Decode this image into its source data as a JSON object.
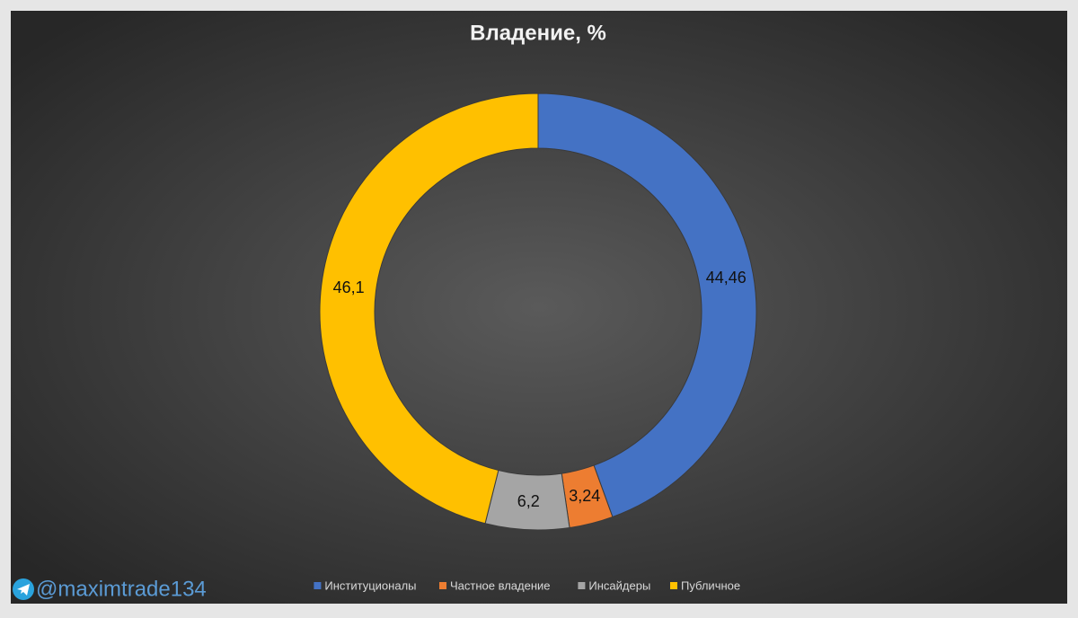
{
  "chart_data": {
    "type": "donut",
    "title": "Владение, %",
    "categories": [
      "Институционалы",
      "Частное владение",
      "Инсайдеры",
      "Публичное"
    ],
    "values": [
      44.46,
      3.24,
      6.2,
      46.1
    ],
    "value_labels": [
      "44,46",
      "3,24",
      "6,2",
      "46,1"
    ],
    "colors": [
      "#4472c4",
      "#ed7d31",
      "#a5a5a5",
      "#ffc000"
    ],
    "legend": "bottom"
  },
  "watermark": "@maximtrade134"
}
